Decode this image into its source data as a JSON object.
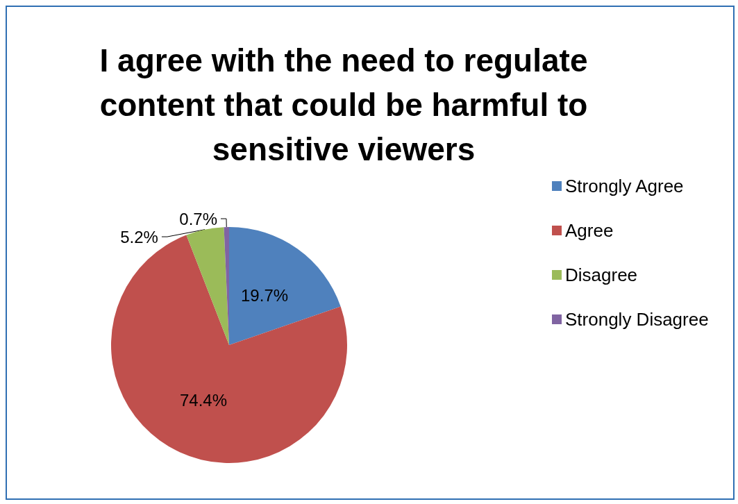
{
  "chart_data": {
    "type": "pie",
    "title": "I agree with the need to regulate\ncontent that could be harmful to\nsensitive viewers",
    "categories": [
      "Strongly Agree",
      "Agree",
      "Disagree",
      "Strongly Disagree"
    ],
    "values": [
      19.7,
      74.4,
      5.2,
      0.7
    ],
    "colors": [
      "#4f81bd",
      "#c0504d",
      "#9bbb59",
      "#8064a2"
    ],
    "value_labels": [
      "19.7%",
      "74.4%",
      "5.2%",
      "0.7%"
    ],
    "legend": "right"
  }
}
